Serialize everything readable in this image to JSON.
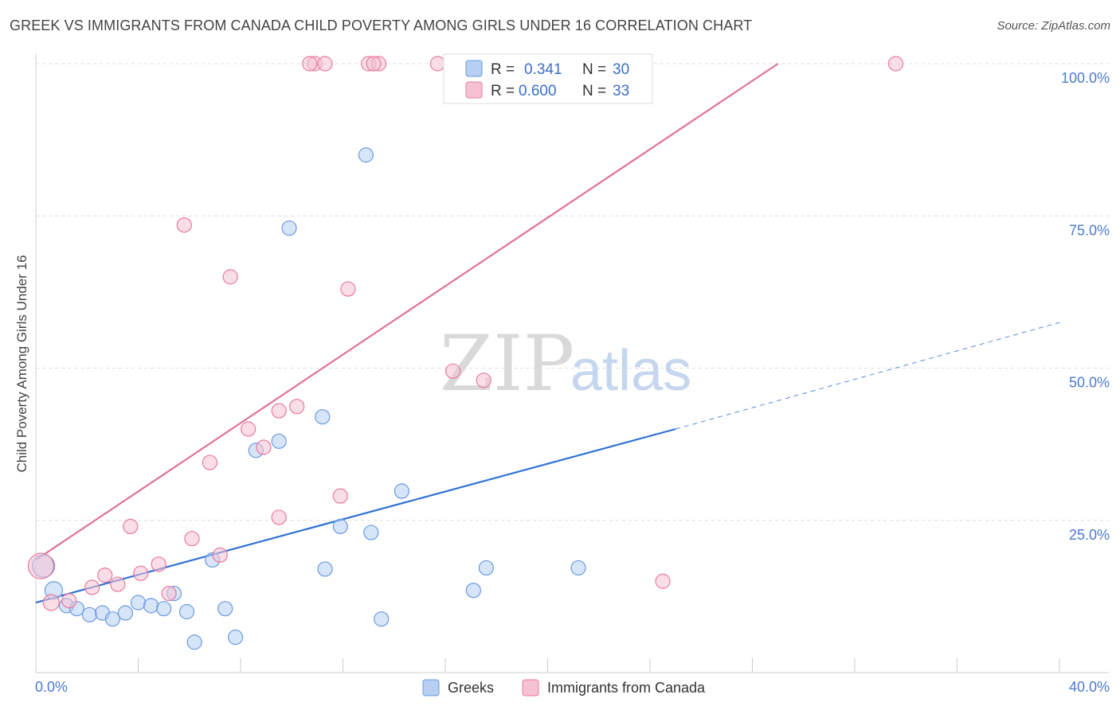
{
  "title": "GREEK VS IMMIGRANTS FROM CANADA CHILD POVERTY AMONG GIRLS UNDER 16 CORRELATION CHART",
  "source": "Source: ZipAtlas.com",
  "watermark": {
    "zip": "ZIP",
    "atlas": "atlas"
  },
  "colors": {
    "greeks": "#6a9be0",
    "greeks_fill": "#b7cff2",
    "canada": "#e8799e",
    "canada_fill": "#f6c2d3",
    "blue_line": "#2e72d2",
    "pink_line": "#e0719a"
  },
  "legend": {
    "rows": [
      {
        "r_label": "R =",
        "r_value": "0.341",
        "n_label": "N =",
        "n_value": "30"
      },
      {
        "r_label": "R =",
        "r_value": "0.600",
        "n_label": "N =",
        "n_value": "33"
      }
    ]
  },
  "chart_data": {
    "type": "scatter",
    "title": "GREEK VS IMMIGRANTS FROM CANADA CHILD POVERTY AMONG GIRLS UNDER 16 CORRELATION CHART",
    "xlabel": "",
    "ylabel": "Child Poverty Among Girls Under 16",
    "xlim": [
      0,
      40
    ],
    "ylim": [
      0,
      100
    ],
    "x_tick_labels": [
      "0.0%",
      "40.0%"
    ],
    "y_tick_labels": [
      "25.0%",
      "50.0%",
      "75.0%",
      "100.0%"
    ],
    "y_ticks": [
      25,
      50,
      75,
      100
    ],
    "grid": true,
    "legend_position": "top-center",
    "series": [
      {
        "name": "Greeks",
        "points": [
          [
            0.3,
            17.5,
            14
          ],
          [
            0.7,
            13.5,
            11
          ],
          [
            1.2,
            11.0,
            9
          ],
          [
            1.6,
            10.5,
            9
          ],
          [
            2.1,
            9.5,
            9
          ],
          [
            2.6,
            9.8,
            9
          ],
          [
            3.0,
            8.8,
            9
          ],
          [
            3.5,
            9.8,
            9
          ],
          [
            4.0,
            11.5,
            9
          ],
          [
            4.5,
            11.0,
            9
          ],
          [
            5.0,
            10.5,
            9
          ],
          [
            5.4,
            13.0,
            9
          ],
          [
            5.9,
            10.0,
            9
          ],
          [
            6.2,
            5.0,
            9
          ],
          [
            6.9,
            18.5,
            9
          ],
          [
            7.4,
            10.5,
            9
          ],
          [
            7.8,
            5.8,
            9
          ],
          [
            8.6,
            36.5,
            9
          ],
          [
            9.9,
            73.0,
            9
          ],
          [
            9.5,
            38.0,
            9
          ],
          [
            11.2,
            42.0,
            9
          ],
          [
            11.3,
            17.0,
            9
          ],
          [
            11.9,
            24.0,
            9
          ],
          [
            12.9,
            85.0,
            9
          ],
          [
            13.1,
            23.0,
            9
          ],
          [
            13.5,
            8.8,
            9
          ],
          [
            14.3,
            29.8,
            9
          ],
          [
            17.1,
            13.5,
            9
          ],
          [
            17.6,
            17.2,
            9
          ],
          [
            21.2,
            17.2,
            9
          ]
        ],
        "trend": {
          "x_start": 0,
          "y_start": 11.5,
          "x_solid_end": 25,
          "y_solid_end": 40,
          "x_dash_end": 40,
          "y_dash_end": 57.5
        }
      },
      {
        "name": "Immigrants from Canada",
        "points": [
          [
            0.2,
            17.5,
            16
          ],
          [
            0.6,
            11.5,
            10
          ],
          [
            1.3,
            11.8,
            9
          ],
          [
            2.2,
            14.0,
            9
          ],
          [
            2.7,
            16.0,
            9
          ],
          [
            3.2,
            14.5,
            9
          ],
          [
            3.7,
            24.0,
            9
          ],
          [
            4.1,
            16.3,
            9
          ],
          [
            4.8,
            17.8,
            9
          ],
          [
            5.2,
            13.0,
            9
          ],
          [
            5.8,
            73.5,
            9
          ],
          [
            6.1,
            22.0,
            9
          ],
          [
            6.8,
            34.5,
            9
          ],
          [
            7.2,
            19.3,
            9
          ],
          [
            7.6,
            65.0,
            9
          ],
          [
            8.3,
            40.0,
            9
          ],
          [
            8.9,
            37.0,
            9
          ],
          [
            9.5,
            43.0,
            9
          ],
          [
            9.5,
            25.5,
            9
          ],
          [
            10.2,
            43.7,
            9
          ],
          [
            10.9,
            100.0,
            9
          ],
          [
            11.3,
            100.0,
            9
          ],
          [
            11.9,
            29.0,
            9
          ],
          [
            12.2,
            63.0,
            9
          ],
          [
            13.0,
            100.0,
            9
          ],
          [
            13.4,
            100.0,
            9
          ],
          [
            15.7,
            100.0,
            9
          ],
          [
            16.3,
            49.5,
            9
          ],
          [
            17.5,
            48.0,
            9
          ],
          [
            24.5,
            15.0,
            9
          ],
          [
            33.6,
            100.0,
            9
          ],
          [
            13.2,
            100.0,
            9
          ],
          [
            10.7,
            100.0,
            9
          ]
        ],
        "trend": {
          "x_start": 0,
          "y_start": 18.5,
          "x_end": 29,
          "y_end": 100
        }
      }
    ]
  },
  "bottom_legend": [
    {
      "label": "Greeks"
    },
    {
      "label": "Immigrants from Canada"
    }
  ]
}
